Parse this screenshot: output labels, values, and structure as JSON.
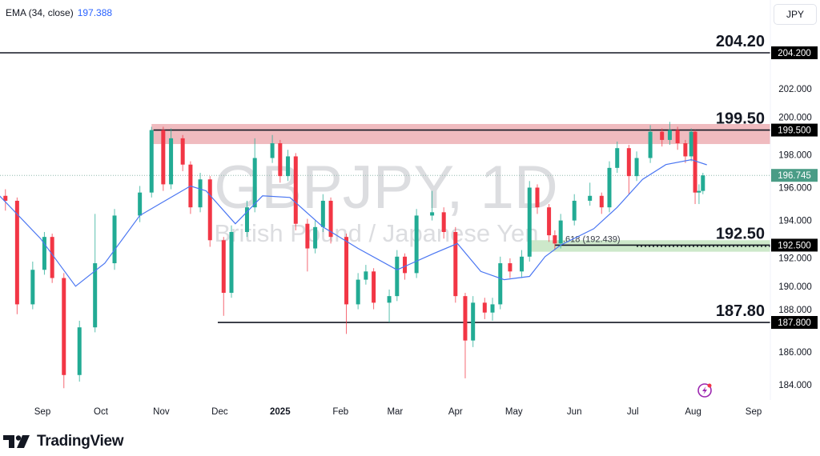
{
  "legend": {
    "indicator": "EMA (34, close)",
    "value": "197.388"
  },
  "currency_button": "JPY",
  "watermark": {
    "symbol": "GBPJPY, 1D",
    "description": "British Pound / Japanese Yen"
  },
  "footer": {
    "brand": "TradingView"
  },
  "colors": {
    "up": "#22ab94",
    "down": "#f23645",
    "ema": "#4a76f2",
    "resistance_zone": "#eeb4b8",
    "support_zone": "#c8e6c4",
    "last_price": "#4a9c86"
  },
  "chart_data": {
    "type": "candlestick",
    "symbol": "GBPJPY",
    "timeframe": "1D",
    "ylim": [
      183.5,
      206
    ],
    "y_ticks": [
      "184.000",
      "186.000",
      "188.000",
      "190.000",
      "192.000",
      "194.000",
      "196.000",
      "198.000",
      "200.000",
      "202.000"
    ],
    "x_ticks": [
      {
        "label": "Sep",
        "date": "2024-09-01"
      },
      {
        "label": "Oct",
        "date": "2024-10-01"
      },
      {
        "label": "Nov",
        "date": "2024-11-01"
      },
      {
        "label": "Dec",
        "date": "2024-12-01"
      },
      {
        "label": "2025",
        "date": "2025-01-01",
        "bold": true
      },
      {
        "label": "Feb",
        "date": "2025-02-01"
      },
      {
        "label": "Mar",
        "date": "2025-03-01"
      },
      {
        "label": "Apr",
        "date": "2025-04-01"
      },
      {
        "label": "May",
        "date": "2025-05-01"
      },
      {
        "label": "Jun",
        "date": "2025-06-01"
      },
      {
        "label": "Jul",
        "date": "2025-07-01"
      },
      {
        "label": "Aug",
        "date": "2025-08-01"
      },
      {
        "label": "Sep",
        "date": "2025-09-01"
      }
    ],
    "candles_columns": [
      "date",
      "open",
      "high",
      "low",
      "close"
    ],
    "candles": [
      [
        "2024-08-13",
        195.5,
        195.9,
        194.6,
        195.2
      ],
      [
        "2024-08-19",
        195.2,
        195.4,
        188.3,
        188.9
      ],
      [
        "2024-08-27",
        188.9,
        191.5,
        188.6,
        191.0
      ],
      [
        "2024-09-02",
        191.0,
        193.3,
        190.7,
        193.0
      ],
      [
        "2024-09-06",
        193.0,
        193.2,
        190.2,
        190.5
      ],
      [
        "2024-09-12",
        190.5,
        190.8,
        183.8,
        184.6
      ],
      [
        "2024-09-20",
        184.6,
        187.9,
        184.2,
        187.5
      ],
      [
        "2024-09-28",
        187.5,
        194.4,
        187.2,
        191.4
      ],
      [
        "2024-10-08",
        191.4,
        194.7,
        191.0,
        194.3
      ],
      [
        "2024-10-21",
        194.3,
        196.1,
        193.9,
        195.7
      ],
      [
        "2024-10-27",
        195.7,
        199.7,
        195.4,
        199.5
      ],
      [
        "2024-11-02",
        199.5,
        199.7,
        195.8,
        196.2
      ],
      [
        "2024-11-06",
        196.2,
        199.6,
        195.9,
        199.0
      ],
      [
        "2024-11-12",
        199.0,
        199.2,
        197.0,
        197.4
      ],
      [
        "2024-11-16",
        197.4,
        197.6,
        194.4,
        194.8
      ],
      [
        "2024-11-21",
        194.8,
        196.9,
        194.5,
        196.5
      ],
      [
        "2024-11-26",
        196.5,
        196.7,
        192.4,
        192.8
      ],
      [
        "2024-12-03",
        192.8,
        193.0,
        188.2,
        189.6
      ],
      [
        "2024-12-07",
        189.6,
        193.7,
        189.3,
        193.3
      ],
      [
        "2024-12-15",
        193.3,
        195.2,
        193.0,
        194.8
      ],
      [
        "2024-12-19",
        194.8,
        199.0,
        194.5,
        197.8
      ],
      [
        "2024-12-28",
        197.8,
        199.2,
        197.5,
        198.7
      ],
      [
        "2025-01-01",
        198.7,
        198.9,
        196.3,
        196.7
      ],
      [
        "2025-01-05",
        196.7,
        198.3,
        196.4,
        197.9
      ],
      [
        "2025-01-09",
        197.9,
        198.1,
        193.4,
        193.8
      ],
      [
        "2025-01-15",
        193.8,
        194.1,
        190.9,
        192.3
      ],
      [
        "2025-01-19",
        192.3,
        194.0,
        192.0,
        193.6
      ],
      [
        "2025-01-23",
        193.6,
        195.6,
        193.3,
        195.2
      ],
      [
        "2025-01-27",
        195.2,
        195.4,
        192.6,
        193.0
      ],
      [
        "2025-02-04",
        193.0,
        193.2,
        187.1,
        188.9
      ],
      [
        "2025-02-10",
        188.9,
        190.8,
        188.6,
        190.4
      ],
      [
        "2025-02-14",
        190.4,
        191.3,
        190.1,
        190.9
      ],
      [
        "2025-02-18",
        190.9,
        191.1,
        188.6,
        189.0
      ],
      [
        "2025-02-26",
        189.0,
        189.8,
        187.8,
        189.4
      ],
      [
        "2025-03-02",
        189.4,
        192.2,
        189.1,
        191.8
      ],
      [
        "2025-03-06",
        191.8,
        192.0,
        190.4,
        190.8
      ],
      [
        "2025-03-12",
        190.8,
        194.7,
        190.5,
        194.3
      ],
      [
        "2025-03-20",
        194.3,
        195.8,
        194.0,
        194.5
      ],
      [
        "2025-03-26",
        194.5,
        194.8,
        192.9,
        193.3
      ],
      [
        "2025-04-01",
        193.3,
        193.6,
        189.0,
        189.4
      ],
      [
        "2025-04-06",
        189.4,
        189.6,
        184.4,
        186.7
      ],
      [
        "2025-04-10",
        186.7,
        189.4,
        186.3,
        189.0
      ],
      [
        "2025-04-16",
        189.0,
        189.3,
        188.0,
        188.4
      ],
      [
        "2025-04-20",
        188.4,
        189.3,
        187.9,
        188.9
      ],
      [
        "2025-04-24",
        188.9,
        191.8,
        188.6,
        191.4
      ],
      [
        "2025-04-29",
        191.4,
        191.7,
        190.5,
        190.9
      ],
      [
        "2025-05-05",
        190.9,
        192.2,
        190.5,
        191.8
      ],
      [
        "2025-05-09",
        191.8,
        196.4,
        191.5,
        196.0
      ],
      [
        "2025-05-13",
        196.0,
        196.2,
        194.4,
        194.8
      ],
      [
        "2025-05-19",
        194.8,
        195.0,
        192.7,
        193.1
      ],
      [
        "2025-05-22",
        193.1,
        193.4,
        192.2,
        192.6
      ],
      [
        "2025-05-25",
        192.6,
        194.4,
        192.3,
        194.0
      ],
      [
        "2025-06-01",
        194.0,
        195.6,
        193.7,
        195.2
      ],
      [
        "2025-06-09",
        195.2,
        196.3,
        194.9,
        195.5
      ],
      [
        "2025-06-15",
        195.5,
        195.7,
        194.4,
        194.8
      ],
      [
        "2025-06-19",
        194.8,
        197.6,
        194.5,
        197.2
      ],
      [
        "2025-06-23",
        197.2,
        198.8,
        196.9,
        198.4
      ],
      [
        "2025-06-29",
        198.4,
        198.6,
        195.6,
        196.7
      ],
      [
        "2025-07-03",
        196.7,
        198.2,
        196.4,
        197.8
      ],
      [
        "2025-07-10",
        197.8,
        199.8,
        197.5,
        199.4
      ],
      [
        "2025-07-16",
        199.4,
        199.6,
        198.5,
        198.9
      ],
      [
        "2025-07-20",
        198.9,
        200.0,
        198.6,
        199.5
      ],
      [
        "2025-07-24",
        199.5,
        199.7,
        198.3,
        198.7
      ],
      [
        "2025-07-28",
        198.7,
        198.9,
        197.5,
        197.9
      ],
      [
        "2025-07-31",
        197.9,
        199.6,
        197.6,
        199.4
      ],
      [
        "2025-08-02",
        199.4,
        199.5,
        195.0,
        195.7
      ],
      [
        "2025-08-04",
        195.7,
        196.2,
        195.0,
        195.8
      ],
      [
        "2025-08-06",
        195.8,
        196.9,
        195.6,
        196.745
      ]
    ],
    "ema": {
      "name": "EMA (34, close)",
      "points": [
        [
          "2024-08-10",
          195.5
        ],
        [
          "2024-08-31",
          192.9
        ],
        [
          "2024-09-18",
          190.0
        ],
        [
          "2024-10-03",
          191.4
        ],
        [
          "2024-10-21",
          194.3
        ],
        [
          "2024-10-31",
          195.0
        ],
        [
          "2024-11-16",
          196.1
        ],
        [
          "2024-11-24",
          195.8
        ],
        [
          "2024-12-09",
          193.8
        ],
        [
          "2024-12-23",
          195.5
        ],
        [
          "2025-01-06",
          195.4
        ],
        [
          "2025-01-23",
          193.6
        ],
        [
          "2025-02-10",
          192.3
        ],
        [
          "2025-03-02",
          191.0
        ],
        [
          "2025-03-21",
          192.0
        ],
        [
          "2025-04-02",
          192.6
        ],
        [
          "2025-04-14",
          190.9
        ],
        [
          "2025-04-26",
          190.4
        ],
        [
          "2025-05-09",
          190.6
        ],
        [
          "2025-05-17",
          191.8
        ],
        [
          "2025-05-25",
          192.5
        ],
        [
          "2025-06-11",
          193.5
        ],
        [
          "2025-06-23",
          194.8
        ],
        [
          "2025-07-06",
          196.5
        ],
        [
          "2025-07-18",
          197.4
        ],
        [
          "2025-07-31",
          197.7
        ],
        [
          "2025-08-08",
          197.388
        ]
      ]
    },
    "levels": [
      {
        "price": 204.2,
        "label": "204.20",
        "axis_label": "204.200",
        "start": "2024-08-01"
      },
      {
        "price": 199.5,
        "label": "199.50",
        "axis_label": "199.500",
        "start": "2024-10-28"
      },
      {
        "price": 192.5,
        "label": "192.50",
        "axis_label": "192.500",
        "start": "2025-05-22"
      },
      {
        "price": 187.8,
        "label": "187.80",
        "axis_label": "187.800",
        "start": "2024-11-30"
      }
    ],
    "zones": [
      {
        "type": "resistance",
        "from": 198.65,
        "to": 199.87,
        "start": "2024-10-27"
      },
      {
        "type": "support",
        "from": 192.1,
        "to": 192.8,
        "start": "2025-05-08"
      }
    ],
    "fib_label": "1.618 (192.439)",
    "last_price": "196.745"
  }
}
